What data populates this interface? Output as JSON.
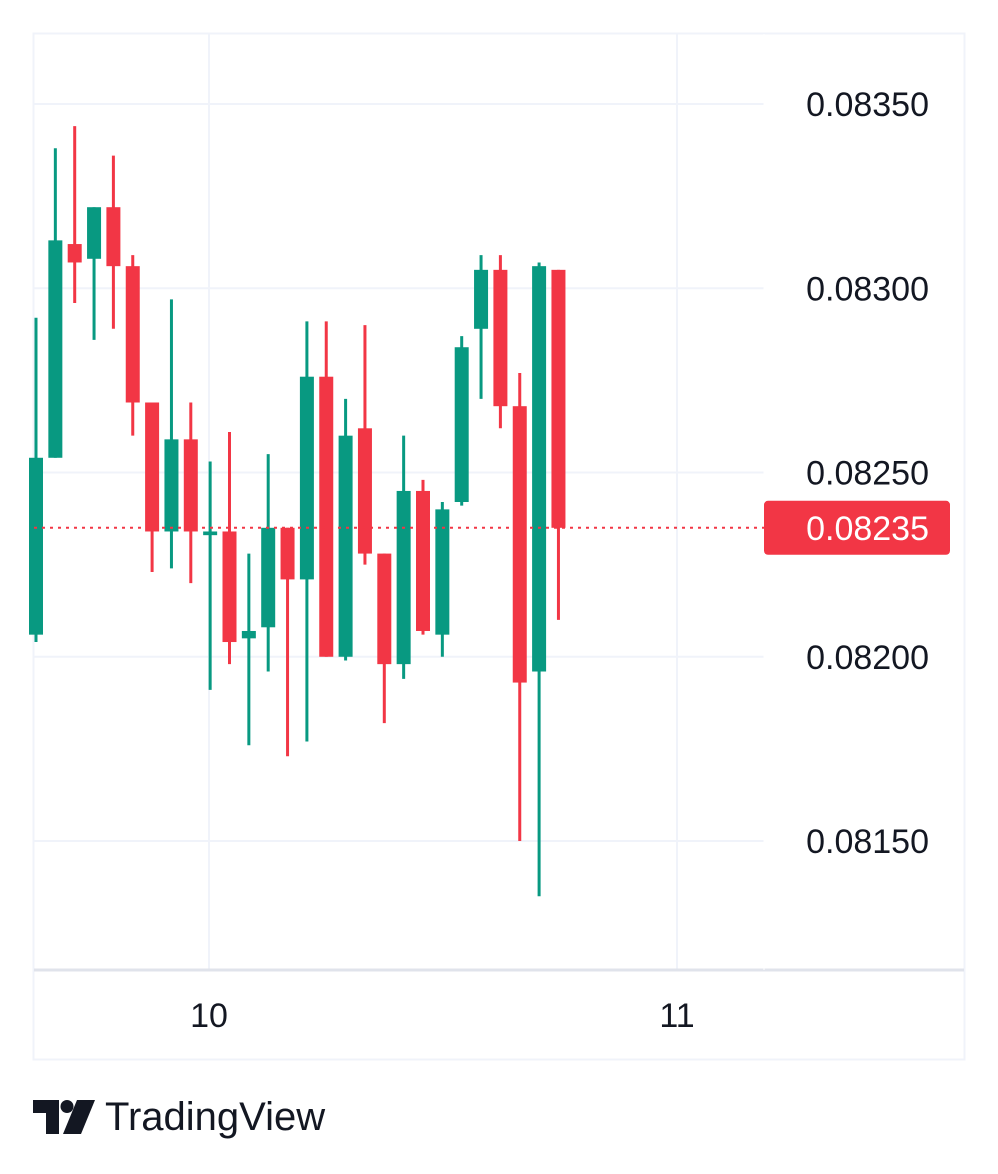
{
  "chart_data": {
    "type": "candlestick",
    "symbol": "",
    "ylim": [
      0.08115,
      0.08369
    ],
    "y_ticks": [
      "0.08350",
      "0.08300",
      "0.08250",
      "0.08200",
      "0.08150"
    ],
    "x_ticks": [
      "10",
      "11"
    ],
    "last_price": "0.08235",
    "last_price_value": 0.08235,
    "colors": {
      "up": "#089981",
      "down": "#f23645",
      "grid": "#f0f3fa",
      "text": "#131722"
    },
    "grid": true,
    "candles": [
      {
        "o": 0.08206,
        "h": 0.08292,
        "l": 0.08204,
        "c": 0.08254
      },
      {
        "o": 0.08254,
        "h": 0.08338,
        "l": 0.08254,
        "c": 0.08313
      },
      {
        "o": 0.08312,
        "h": 0.08344,
        "l": 0.08296,
        "c": 0.08307
      },
      {
        "o": 0.08308,
        "h": 0.08322,
        "l": 0.08286,
        "c": 0.08322
      },
      {
        "o": 0.08322,
        "h": 0.08336,
        "l": 0.08289,
        "c": 0.08306
      },
      {
        "o": 0.08306,
        "h": 0.08309,
        "l": 0.0826,
        "c": 0.08269
      },
      {
        "o": 0.08269,
        "h": 0.08269,
        "l": 0.08223,
        "c": 0.08234
      },
      {
        "o": 0.08234,
        "h": 0.08297,
        "l": 0.08224,
        "c": 0.08259
      },
      {
        "o": 0.08259,
        "h": 0.08269,
        "l": 0.0822,
        "c": 0.08234
      },
      {
        "o": 0.08233,
        "h": 0.08253,
        "l": 0.08191,
        "c": 0.08234
      },
      {
        "o": 0.08234,
        "h": 0.08261,
        "l": 0.08198,
        "c": 0.08204
      },
      {
        "o": 0.08205,
        "h": 0.08228,
        "l": 0.08176,
        "c": 0.08207
      },
      {
        "o": 0.08208,
        "h": 0.08255,
        "l": 0.08196,
        "c": 0.08235
      },
      {
        "o": 0.08235,
        "h": 0.08235,
        "l": 0.08173,
        "c": 0.08221
      },
      {
        "o": 0.08221,
        "h": 0.08291,
        "l": 0.08177,
        "c": 0.08276
      },
      {
        "o": 0.08276,
        "h": 0.08291,
        "l": 0.082,
        "c": 0.082
      },
      {
        "o": 0.082,
        "h": 0.0827,
        "l": 0.08199,
        "c": 0.0826
      },
      {
        "o": 0.08262,
        "h": 0.0829,
        "l": 0.08225,
        "c": 0.08228
      },
      {
        "o": 0.08228,
        "h": 0.08228,
        "l": 0.08182,
        "c": 0.08198
      },
      {
        "o": 0.08198,
        "h": 0.0826,
        "l": 0.08194,
        "c": 0.08245
      },
      {
        "o": 0.08245,
        "h": 0.08248,
        "l": 0.08206,
        "c": 0.08207
      },
      {
        "o": 0.08206,
        "h": 0.08242,
        "l": 0.082,
        "c": 0.0824
      },
      {
        "o": 0.08242,
        "h": 0.08287,
        "l": 0.08241,
        "c": 0.08284
      },
      {
        "o": 0.08289,
        "h": 0.08309,
        "l": 0.0827,
        "c": 0.08305
      },
      {
        "o": 0.08305,
        "h": 0.08309,
        "l": 0.08262,
        "c": 0.08268
      },
      {
        "o": 0.08268,
        "h": 0.08277,
        "l": 0.0815,
        "c": 0.08193
      },
      {
        "o": 0.08196,
        "h": 0.08307,
        "l": 0.08135,
        "c": 0.08306
      },
      {
        "o": 0.08305,
        "h": 0.08305,
        "l": 0.0821,
        "c": 0.08235
      }
    ]
  },
  "branding": {
    "name": "TradingView"
  }
}
